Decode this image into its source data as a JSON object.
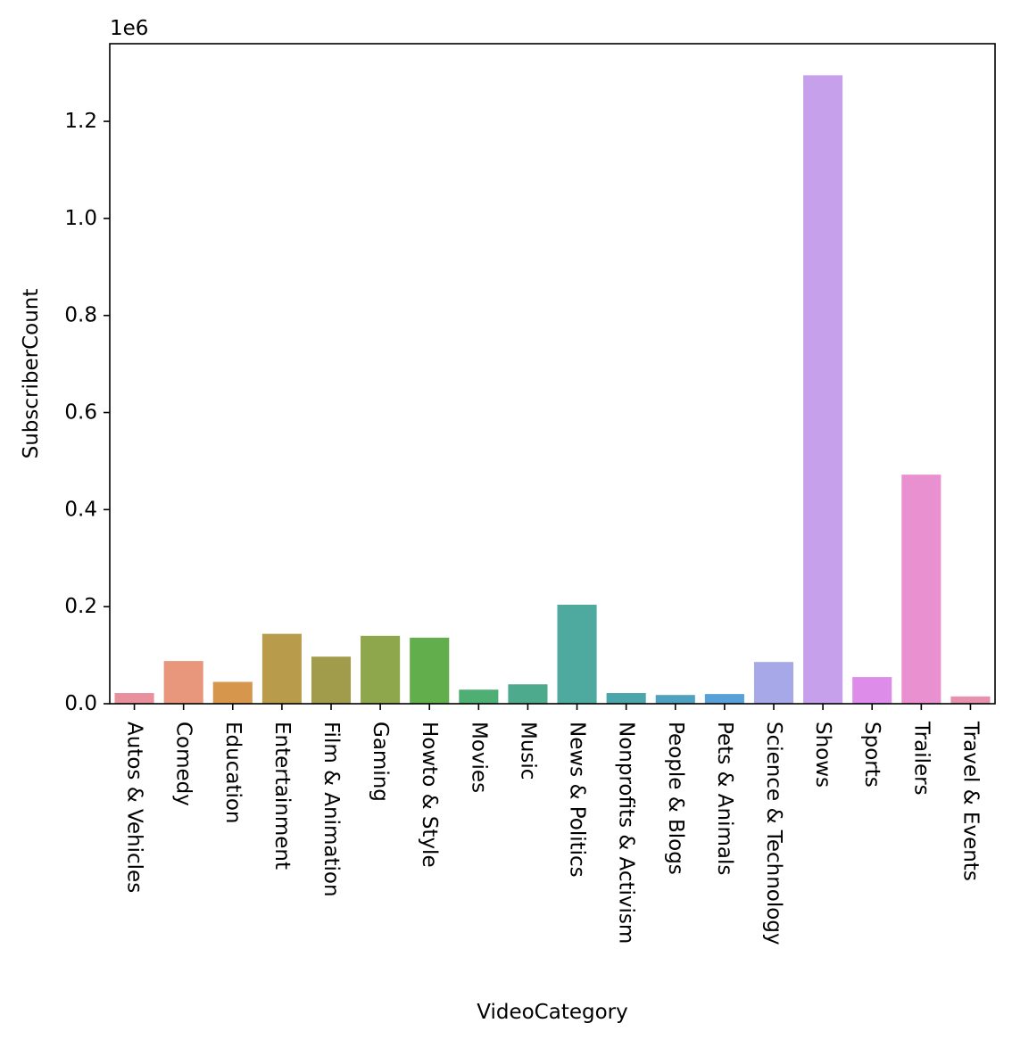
{
  "chart_data": {
    "type": "bar",
    "title": "",
    "xlabel": "VideoCategory",
    "ylabel": "SubscriberCount",
    "y_offset_text": "1e6",
    "y_scale": 1000000,
    "ylim": [
      0,
      1360000
    ],
    "yticks": [
      0.0,
      0.2,
      0.4,
      0.6,
      0.8,
      1.0,
      1.2
    ],
    "ytick_labels": [
      "0.0",
      "0.2",
      "0.4",
      "0.6",
      "0.8",
      "1.0",
      "1.2"
    ],
    "grid": false,
    "legend": "none",
    "categories": [
      "Autos & Vehicles",
      "Comedy",
      "Education",
      "Entertainment",
      "Film & Animation",
      "Gaming",
      "Howto & Style",
      "Movies",
      "Music",
      "News & Politics",
      "Nonprofits & Activism",
      "People & Blogs",
      "Pets & Animals",
      "Science & Technology",
      "Shows",
      "Sports",
      "Trailers",
      "Travel & Events"
    ],
    "values": [
      22000,
      88000,
      45000,
      144000,
      97000,
      140000,
      136000,
      29000,
      40000,
      204000,
      22000,
      18000,
      20000,
      86000,
      1295000,
      55000,
      472000,
      15000
    ],
    "colors": [
      "#e8909c",
      "#e8967c",
      "#d6964c",
      "#b89c4c",
      "#a09c4c",
      "#8ea64c",
      "#62ae4c",
      "#4eae74",
      "#4eaa8c",
      "#4ea99e",
      "#4aa6aa",
      "#4ea2c0",
      "#58a0d8",
      "#a6a8e8",
      "#c6a0ea",
      "#de8cea",
      "#e890d0",
      "#e890b0"
    ]
  }
}
